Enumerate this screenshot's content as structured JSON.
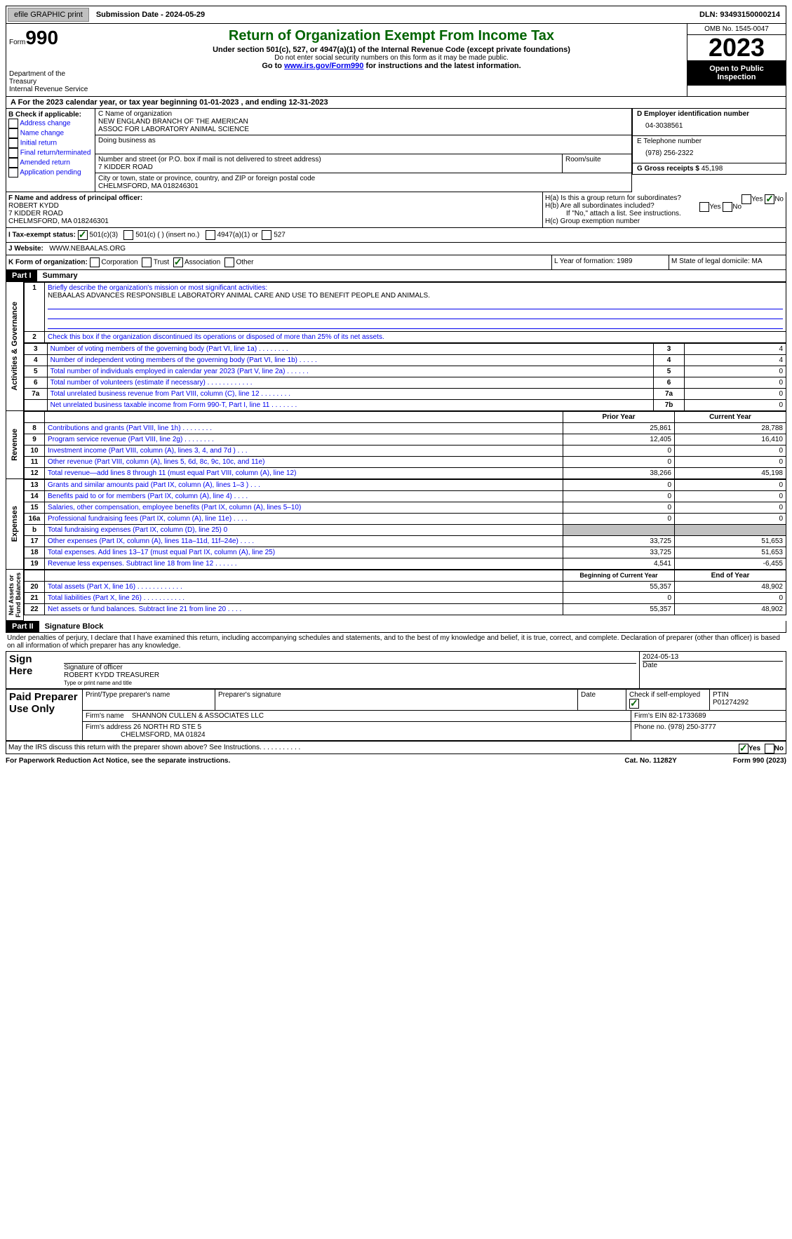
{
  "topbar": {
    "efile": "efile GRAPHIC print",
    "submission": "Submission Date - 2024-05-29",
    "dln": "DLN: 93493150000214"
  },
  "header": {
    "form_label": "Form",
    "form_no": "990",
    "dept": "Department of the Treasury\nInternal Revenue Service",
    "title": "Return of Organization Exempt From Income Tax",
    "sub1": "Under section 501(c), 527, or 4947(a)(1) of the Internal Revenue Code (except private foundations)",
    "sub2": "Do not enter social security numbers on this form as it may be made public.",
    "sub3_a": "Go to ",
    "sub3_link": "www.irs.gov/Form990",
    "sub3_b": " for instructions and the latest information.",
    "omb": "OMB No. 1545-0047",
    "year": "2023",
    "inspect": "Open to Public Inspection"
  },
  "periodA": {
    "text": "A For the 2023 calendar year, or tax year beginning 01-01-2023    , and ending 12-31-2023"
  },
  "sectionB": {
    "title": "B Check if applicable:",
    "items": [
      "Address change",
      "Name change",
      "Initial return",
      "Final return/terminated",
      "Amended return",
      "Application pending"
    ]
  },
  "sectionC": {
    "name_lbl": "C Name of organization",
    "name": "NEW ENGLAND BRANCH OF THE AMERICAN\nASSOC FOR LABORATORY ANIMAL SCIENCE",
    "dba_lbl": "Doing business as",
    "dba": "",
    "street_lbl": "Number and street (or P.O. box if mail is not delivered to street address)",
    "street": "7 KIDDER ROAD",
    "room_lbl": "Room/suite",
    "room": "",
    "city_lbl": "City or town, state or province, country, and ZIP or foreign postal code",
    "city": "CHELMSFORD, MA  018246301"
  },
  "sectionD": {
    "lbl": "D Employer identification number",
    "val": "04-3038561"
  },
  "sectionE": {
    "lbl": "E Telephone number",
    "val": "(978) 256-2322"
  },
  "sectionG": {
    "lbl": "G Gross receipts $",
    "val": "45,198"
  },
  "sectionF": {
    "lbl": "F  Name and address of principal officer:",
    "name": "ROBERT KYDD",
    "street": "7 KIDDER ROAD",
    "city": "CHELMSFORD, MA  018246301"
  },
  "sectionH": {
    "a": "H(a)  Is this a group return for subordinates?",
    "a_yes": "Yes",
    "a_no": "No",
    "b": "H(b)  Are all subordinates included?",
    "b_yes": "Yes",
    "b_no": "No",
    "b_note": "If \"No,\" attach a list. See instructions.",
    "c": "H(c)  Group exemption number"
  },
  "sectionI": {
    "lbl": "I   Tax-exempt status:",
    "o1": "501(c)(3)",
    "o2": "501(c) (  ) (insert no.)",
    "o3": "4947(a)(1) or",
    "o4": "527"
  },
  "sectionJ": {
    "lbl": "J   Website:",
    "val": "WWW.NEBAALAS.ORG"
  },
  "sectionK": {
    "lbl": "K Form of organization:",
    "o1": "Corporation",
    "o2": "Trust",
    "o3": "Association",
    "o4": "Other"
  },
  "sectionL": {
    "lbl": "L Year of formation: 1989"
  },
  "sectionM": {
    "lbl": "M State of legal domicile: MA"
  },
  "part1": {
    "hdr": "Part I",
    "title": "Summary"
  },
  "summary": {
    "l1": "Briefly describe the organization's mission or most significant activities:",
    "l1v": "NEBAALAS ADVANCES RESPONSIBLE LABORATORY ANIMAL CARE AND USE TO BENEFIT PEOPLE AND ANIMALS.",
    "l2": "Check this box      if the organization discontinued its operations or disposed of more than 25% of its net assets.",
    "rows": [
      {
        "n": "3",
        "t": "Number of voting members of the governing body (Part VI, line 1a)   .    .    .    .    .    .    .    .",
        "rn": "3",
        "v": "4"
      },
      {
        "n": "4",
        "t": "Number of independent voting members of the governing body (Part VI, line 1b)   .    .    .    .    .",
        "rn": "4",
        "v": "4"
      },
      {
        "n": "5",
        "t": "Total number of individuals employed in calendar year 2023 (Part V, line 2a)   .    .    .    .    .    .",
        "rn": "5",
        "v": "0"
      },
      {
        "n": "6",
        "t": "Total number of volunteers (estimate if necessary)   .    .    .    .    .    .    .    .    .    .    .    .",
        "rn": "6",
        "v": "0"
      },
      {
        "n": "7a",
        "t": "Total unrelated business revenue from Part VIII, column (C), line 12   .    .    .    .    .    .    .    .",
        "rn": "7a",
        "v": "0"
      },
      {
        "n": "",
        "t": "Net unrelated business taxable income from Form 990-T, Part I, line 11   .    .    .    .    .    .    .",
        "rn": "7b",
        "v": "0"
      }
    ]
  },
  "revExp": {
    "hdr_prior": "Prior Year",
    "hdr_curr": "Current Year",
    "revenue": [
      {
        "n": "8",
        "t": "Contributions and grants (Part VIII, line 1h)   .    .    .    .    .    .    .    .",
        "p": "25,861",
        "c": "28,788"
      },
      {
        "n": "9",
        "t": "Program service revenue (Part VIII, line 2g)   .    .    .    .    .    .    .    .",
        "p": "12,405",
        "c": "16,410"
      },
      {
        "n": "10",
        "t": "Investment income (Part VIII, column (A), lines 3, 4, and 7d )   .    .    .",
        "p": "0",
        "c": "0"
      },
      {
        "n": "11",
        "t": "Other revenue (Part VIII, column (A), lines 5, 6d, 8c, 9c, 10c, and 11e)",
        "p": "0",
        "c": "0"
      },
      {
        "n": "12",
        "t": "Total revenue—add lines 8 through 11 (must equal Part VIII, column (A), line 12)",
        "p": "38,266",
        "c": "45,198"
      }
    ],
    "expenses": [
      {
        "n": "13",
        "t": "Grants and similar amounts paid (Part IX, column (A), lines 1–3 )   .    .    .",
        "p": "0",
        "c": "0"
      },
      {
        "n": "14",
        "t": "Benefits paid to or for members (Part IX, column (A), line 4)   .    .    .    .",
        "p": "0",
        "c": "0"
      },
      {
        "n": "15",
        "t": "Salaries, other compensation, employee benefits (Part IX, column (A), lines 5–10)",
        "p": "0",
        "c": "0"
      },
      {
        "n": "16a",
        "t": "Professional fundraising fees (Part IX, column (A), line 11e)   .    .    .    .",
        "p": "0",
        "c": "0"
      },
      {
        "n": "b",
        "t": "Total fundraising expenses (Part IX, column (D), line 25) 0",
        "p": "",
        "c": "",
        "grey": true
      },
      {
        "n": "17",
        "t": "Other expenses (Part IX, column (A), lines 11a–11d, 11f–24e)   .    .    .    .",
        "p": "33,725",
        "c": "51,653"
      },
      {
        "n": "18",
        "t": "Total expenses. Add lines 13–17 (must equal Part IX, column (A), line 25)",
        "p": "33,725",
        "c": "51,653"
      },
      {
        "n": "19",
        "t": "Revenue less expenses. Subtract line 18 from line 12   .    .    .    .    .    .",
        "p": "4,541",
        "c": "-6,455"
      }
    ],
    "hdr_begin": "Beginning of Current Year",
    "hdr_end": "End of Year",
    "netassets": [
      {
        "n": "20",
        "t": "Total assets (Part X, line 16)   .    .    .    .    .    .    .    .    .    .    .    .",
        "p": "55,357",
        "c": "48,902"
      },
      {
        "n": "21",
        "t": "Total liabilities (Part X, line 26)   .    .    .    .    .    .    .    .    .    .    .",
        "p": "0",
        "c": "0"
      },
      {
        "n": "22",
        "t": "Net assets or fund balances. Subtract line 21 from line 20   .    .    .    .",
        "p": "55,357",
        "c": "48,902"
      }
    ]
  },
  "sideLabels": {
    "ag": "Activities & Governance",
    "rev": "Revenue",
    "exp": "Expenses",
    "na": "Net Assets or\nFund Balances"
  },
  "part2": {
    "hdr": "Part II",
    "title": "Signature Block",
    "decl": "Under penalties of perjury, I declare that I have examined this return, including accompanying schedules and statements, and to the best of my knowledge and belief, it is true, correct, and complete. Declaration of preparer (other than officer) is based on all information of which preparer has any knowledge."
  },
  "sign": {
    "here": "Sign Here",
    "sig_lbl": "Signature of officer",
    "date_lbl": "Date",
    "date": "2024-05-13",
    "name": "ROBERT KYDD  TREASURER",
    "name_lbl": "Type or print name and title"
  },
  "preparer": {
    "title": "Paid Preparer Use Only",
    "print_lbl": "Print/Type preparer's name",
    "sig_lbl": "Preparer's signature",
    "date_lbl": "Date",
    "check_lbl": "Check         if self-employed",
    "ptin_lbl": "PTIN",
    "ptin": "P01274292",
    "firm_lbl": "Firm's name",
    "firm": "SHANNON CULLEN & ASSOCIATES LLC",
    "ein_lbl": "Firm's EIN",
    "ein": "82-1733689",
    "addr_lbl": "Firm's address",
    "addr": "26 NORTH RD STE 5",
    "city": "CHELMSFORD, MA  01824",
    "phone_lbl": "Phone no.",
    "phone": "(978) 250-3777"
  },
  "discuss": {
    "q": "May the IRS discuss this return with the preparer shown above? See Instructions.    .    .    .    .    .    .    .    .    .    .",
    "yes": "Yes",
    "no": "No"
  },
  "footer": {
    "l": "For Paperwork Reduction Act Notice, see the separate instructions.",
    "m": "Cat. No. 11282Y",
    "r": "Form 990 (2023)"
  }
}
